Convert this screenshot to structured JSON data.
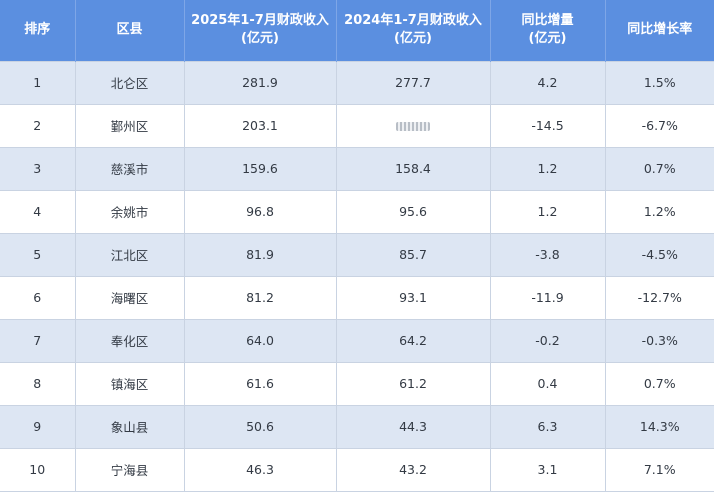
{
  "table": {
    "headers": {
      "rank": "排序",
      "district": "区县",
      "rev2025_line1": "2025年1-7月财政收入",
      "rev2025_line2": "(亿元)",
      "rev2024_line1": "2024年1-7月财政收入",
      "rev2024_line2": "(亿元)",
      "change_line1": "同比增量",
      "change_line2": "(亿元)",
      "rate": "同比增长率"
    },
    "rows": [
      {
        "rank": "1",
        "district": "北仑区",
        "rev2025": "281.9",
        "rev2024": "277.7",
        "change": "4.2",
        "rate": "1.5%"
      },
      {
        "rank": "2",
        "district": "鄞州区",
        "rev2025": "203.1",
        "rev2024": "",
        "change": "-14.5",
        "rate": "-6.7%"
      },
      {
        "rank": "3",
        "district": "慈溪市",
        "rev2025": "159.6",
        "rev2024": "158.4",
        "change": "1.2",
        "rate": "0.7%"
      },
      {
        "rank": "4",
        "district": "余姚市",
        "rev2025": "96.8",
        "rev2024": "95.6",
        "change": "1.2",
        "rate": "1.2%"
      },
      {
        "rank": "5",
        "district": "江北区",
        "rev2025": "81.9",
        "rev2024": "85.7",
        "change": "-3.8",
        "rate": "-4.5%"
      },
      {
        "rank": "6",
        "district": "海曙区",
        "rev2025": "81.2",
        "rev2024": "93.1",
        "change": "-11.9",
        "rate": "-12.7%"
      },
      {
        "rank": "7",
        "district": "奉化区",
        "rev2025": "64.0",
        "rev2024": "64.2",
        "change": "-0.2",
        "rate": "-0.3%"
      },
      {
        "rank": "8",
        "district": "镇海区",
        "rev2025": "61.6",
        "rev2024": "61.2",
        "change": "0.4",
        "rate": "0.7%"
      },
      {
        "rank": "9",
        "district": "象山县",
        "rev2025": "50.6",
        "rev2024": "44.3",
        "change": "6.3",
        "rate": "14.3%"
      },
      {
        "rank": "10",
        "district": "宁海县",
        "rev2025": "46.3",
        "rev2024": "43.2",
        "change": "3.1",
        "rate": "7.1%"
      }
    ]
  },
  "colors": {
    "header_bg": "#5b8fe0",
    "header_text": "#ffffff",
    "row_odd_bg": "#dde6f3",
    "row_even_bg": "#ffffff",
    "text": "#333a44"
  }
}
